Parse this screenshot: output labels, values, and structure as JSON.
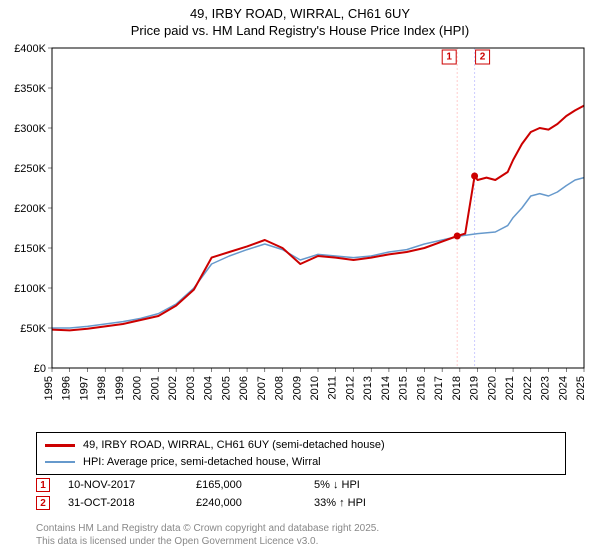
{
  "title": {
    "line1": "49, IRBY ROAD, WIRRAL, CH61 6UY",
    "line2": "Price paid vs. HM Land Registry's House Price Index (HPI)"
  },
  "chart": {
    "type": "line",
    "background_color": "#ffffff",
    "axis_color": "#000000",
    "ylim": [
      0,
      400000
    ],
    "ytick_step": 50000,
    "ytick_labels": [
      "£0",
      "£50K",
      "£100K",
      "£150K",
      "£200K",
      "£250K",
      "£300K",
      "£350K",
      "£400K"
    ],
    "xlim": [
      1995,
      2025
    ],
    "xticks": [
      1995,
      1996,
      1997,
      1998,
      1999,
      2000,
      2001,
      2002,
      2003,
      2004,
      2005,
      2006,
      2007,
      2008,
      2009,
      2010,
      2011,
      2012,
      2013,
      2014,
      2015,
      2016,
      2017,
      2018,
      2019,
      2020,
      2021,
      2022,
      2023,
      2024,
      2025
    ],
    "label_fontsize": 11,
    "series_red": {
      "name": "49, IRBY ROAD, WIRRAL, CH61 6UY (semi-detached house)",
      "color": "#cc0000",
      "line_width": 2,
      "points": [
        [
          1995,
          48000
        ],
        [
          1996,
          47000
        ],
        [
          1997,
          49000
        ],
        [
          1998,
          52000
        ],
        [
          1999,
          55000
        ],
        [
          2000,
          60000
        ],
        [
          2001,
          65000
        ],
        [
          2002,
          78000
        ],
        [
          2003,
          98000
        ],
        [
          2004,
          138000
        ],
        [
          2005,
          145000
        ],
        [
          2006,
          152000
        ],
        [
          2007,
          160000
        ],
        [
          2008,
          150000
        ],
        [
          2009,
          130000
        ],
        [
          2010,
          140000
        ],
        [
          2011,
          138000
        ],
        [
          2012,
          135000
        ],
        [
          2013,
          138000
        ],
        [
          2014,
          142000
        ],
        [
          2015,
          145000
        ],
        [
          2016,
          150000
        ],
        [
          2017,
          158000
        ],
        [
          2017.85,
          165000
        ],
        [
          2018.3,
          168000
        ],
        [
          2018.83,
          240000
        ],
        [
          2019,
          235000
        ],
        [
          2019.5,
          238000
        ],
        [
          2020,
          235000
        ],
        [
          2020.7,
          245000
        ],
        [
          2021,
          260000
        ],
        [
          2021.5,
          280000
        ],
        [
          2022,
          295000
        ],
        [
          2022.5,
          300000
        ],
        [
          2023,
          298000
        ],
        [
          2023.5,
          305000
        ],
        [
          2024,
          315000
        ],
        [
          2024.5,
          322000
        ],
        [
          2025,
          328000
        ]
      ]
    },
    "series_blue": {
      "name": "HPI: Average price, semi-detached house, Wirral",
      "color": "#6699cc",
      "line_width": 1.5,
      "points": [
        [
          1995,
          50000
        ],
        [
          1996,
          50000
        ],
        [
          1997,
          52000
        ],
        [
          1998,
          55000
        ],
        [
          1999,
          58000
        ],
        [
          2000,
          62000
        ],
        [
          2001,
          68000
        ],
        [
          2002,
          80000
        ],
        [
          2003,
          100000
        ],
        [
          2004,
          130000
        ],
        [
          2005,
          140000
        ],
        [
          2006,
          148000
        ],
        [
          2007,
          155000
        ],
        [
          2008,
          148000
        ],
        [
          2009,
          135000
        ],
        [
          2010,
          142000
        ],
        [
          2011,
          140000
        ],
        [
          2012,
          138000
        ],
        [
          2013,
          140000
        ],
        [
          2014,
          145000
        ],
        [
          2015,
          148000
        ],
        [
          2016,
          155000
        ],
        [
          2017,
          160000
        ],
        [
          2018,
          165000
        ],
        [
          2019,
          168000
        ],
        [
          2020,
          170000
        ],
        [
          2020.7,
          178000
        ],
        [
          2021,
          188000
        ],
        [
          2021.5,
          200000
        ],
        [
          2022,
          215000
        ],
        [
          2022.5,
          218000
        ],
        [
          2023,
          215000
        ],
        [
          2023.5,
          220000
        ],
        [
          2024,
          228000
        ],
        [
          2024.5,
          235000
        ],
        [
          2025,
          238000
        ]
      ]
    },
    "sale_markers": [
      {
        "n": "1",
        "x": 2017.85,
        "y": 165000,
        "vline_color": "#ffcccc"
      },
      {
        "n": "2",
        "x": 2018.83,
        "y": 240000,
        "vline_color": "#ccccff"
      }
    ]
  },
  "legend": {
    "items": [
      {
        "color": "#cc0000",
        "label": "49, IRBY ROAD, WIRRAL, CH61 6UY (semi-detached house)"
      },
      {
        "color": "#6699cc",
        "label": "HPI: Average price, semi-detached house, Wirral"
      }
    ]
  },
  "sales": [
    {
      "n": "1",
      "date": "10-NOV-2017",
      "price": "£165,000",
      "delta": "5% ↓ HPI"
    },
    {
      "n": "2",
      "date": "31-OCT-2018",
      "price": "£240,000",
      "delta": "33% ↑ HPI"
    }
  ],
  "footer": {
    "line1": "Contains HM Land Registry data © Crown copyright and database right 2025.",
    "line2": "This data is licensed under the Open Government Licence v3.0."
  }
}
